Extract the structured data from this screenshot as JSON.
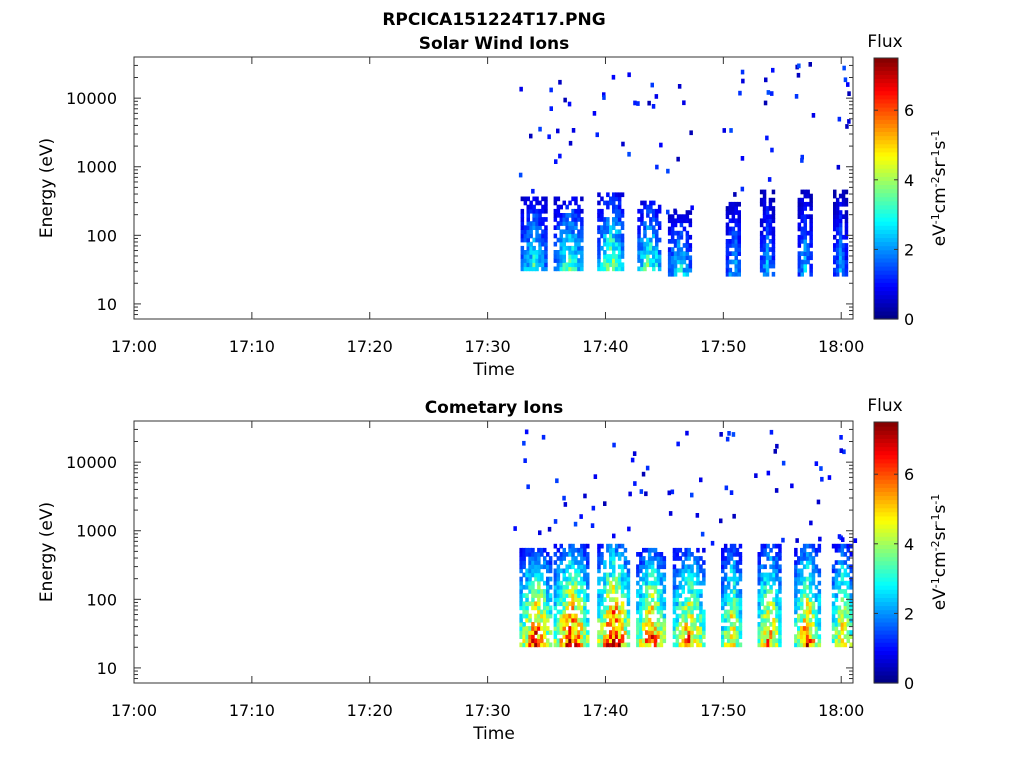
{
  "figure_title": "RPCICA151224T17.PNG",
  "chart_data": [
    {
      "type": "heatmap",
      "title": "Solar Wind Ions",
      "xlabel": "Time",
      "ylabel": "Energy (eV)",
      "x_ticks": [
        "17:00",
        "17:10",
        "17:20",
        "17:30",
        "17:40",
        "17:50",
        "18:00"
      ],
      "xlim_minutes": [
        0,
        61
      ],
      "y_ticks": [
        "10",
        "100",
        "1000",
        "10000"
      ],
      "ylim_log10": [
        0.78,
        4.6
      ],
      "y_scale": "log",
      "colorbar": {
        "label": "Flux",
        "unit": "eV-1cm-2sr-1s-1",
        "ticks": [
          "0",
          "2",
          "4",
          "6"
        ],
        "range": [
          0,
          7.5
        ],
        "colormap": "jet"
      },
      "bursts": [
        {
          "t": 33.8,
          "w": 2.0,
          "peak": 3.2,
          "emin": 30,
          "emax": 350
        },
        {
          "t": 36.8,
          "w": 2.4,
          "peak": 3.5,
          "emin": 30,
          "emax": 350
        },
        {
          "t": 40.4,
          "w": 2.2,
          "peak": 4.0,
          "emin": 30,
          "emax": 400
        },
        {
          "t": 43.6,
          "w": 1.8,
          "peak": 3.8,
          "emin": 30,
          "emax": 300
        },
        {
          "t": 46.2,
          "w": 1.8,
          "peak": 3.0,
          "emin": 25,
          "emax": 200
        },
        {
          "t": 50.8,
          "w": 1.2,
          "peak": 2.5,
          "emin": 25,
          "emax": 300
        },
        {
          "t": 53.6,
          "w": 1.0,
          "peak": 2.5,
          "emin": 25,
          "emax": 400
        },
        {
          "t": 56.8,
          "w": 1.0,
          "peak": 2.5,
          "emin": 25,
          "emax": 400
        },
        {
          "t": 59.8,
          "w": 1.0,
          "peak": 2.2,
          "emin": 25,
          "emax": 400
        }
      ]
    },
    {
      "type": "heatmap",
      "title": "Cometary Ions",
      "xlabel": "Time",
      "ylabel": "Energy (eV)",
      "x_ticks": [
        "17:00",
        "17:10",
        "17:20",
        "17:30",
        "17:40",
        "17:50",
        "18:00"
      ],
      "xlim_minutes": [
        0,
        61
      ],
      "y_ticks": [
        "10",
        "100",
        "1000",
        "10000"
      ],
      "ylim_log10": [
        0.78,
        4.6
      ],
      "y_scale": "log",
      "colorbar": {
        "label": "Flux",
        "unit": "eV-1cm-2sr-1s-1",
        "ticks": [
          "0",
          "2",
          "4",
          "6"
        ],
        "range": [
          0,
          7.5
        ],
        "colormap": "jet"
      },
      "bursts": [
        {
          "t": 34.0,
          "w": 2.6,
          "peak": 6.5,
          "emin": 20,
          "emax": 500
        },
        {
          "t": 37.0,
          "w": 2.8,
          "peak": 6.8,
          "emin": 20,
          "emax": 600
        },
        {
          "t": 40.6,
          "w": 2.6,
          "peak": 7.2,
          "emin": 20,
          "emax": 600
        },
        {
          "t": 43.8,
          "w": 2.4,
          "peak": 6.5,
          "emin": 20,
          "emax": 500
        },
        {
          "t": 47.0,
          "w": 2.6,
          "peak": 6.0,
          "emin": 20,
          "emax": 500
        },
        {
          "t": 50.6,
          "w": 1.6,
          "peak": 5.5,
          "emin": 20,
          "emax": 600
        },
        {
          "t": 53.8,
          "w": 1.8,
          "peak": 6.0,
          "emin": 20,
          "emax": 600
        },
        {
          "t": 57.0,
          "w": 2.0,
          "peak": 6.2,
          "emin": 20,
          "emax": 600
        },
        {
          "t": 60.0,
          "w": 1.6,
          "peak": 5.8,
          "emin": 20,
          "emax": 600
        }
      ]
    }
  ]
}
